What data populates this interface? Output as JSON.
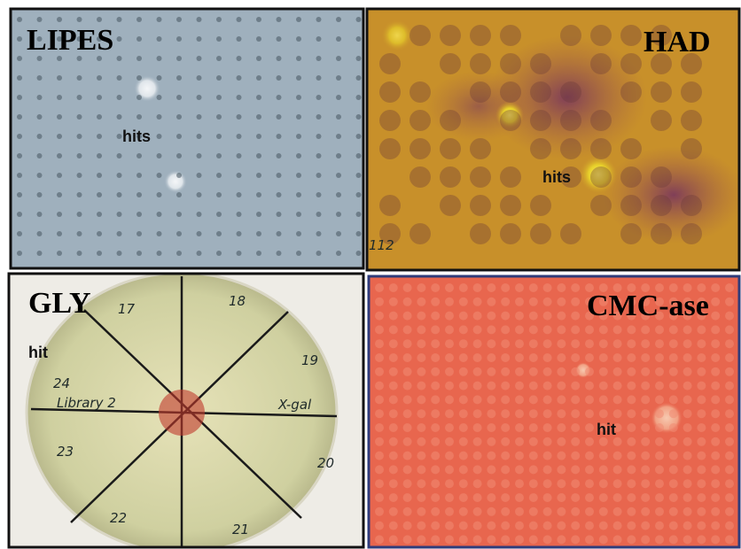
{
  "panels": [
    {
      "title": "LIPES",
      "hit_label": "hits"
    },
    {
      "title": "HAD",
      "hit_label": "hits",
      "plate_mark": "112"
    },
    {
      "title": "GLY",
      "hit_label": "hit",
      "sectors": [
        "17",
        "18",
        "19",
        "20",
        "21",
        "22",
        "23",
        "24"
      ],
      "writing": [
        "Library 2",
        "X-gal"
      ]
    },
    {
      "title": "CMC-ase",
      "hit_label": "hit"
    }
  ]
}
